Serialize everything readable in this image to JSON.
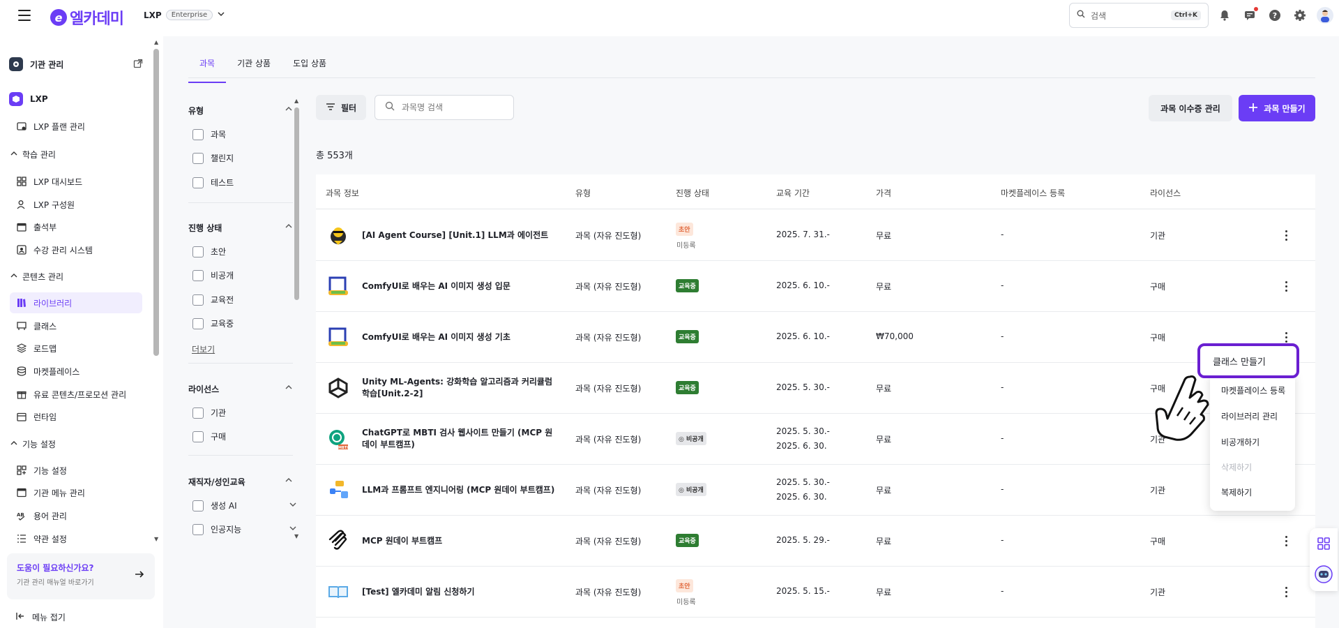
{
  "header": {
    "logo_text": "엘카데미",
    "product": "LXP",
    "edition": "Enterprise",
    "search_placeholder": "검색",
    "search_shortcut": "Ctrl+K"
  },
  "sidebar": {
    "org": "기관 관리",
    "lxp": "LXP",
    "lxp_plan": "LXP 플랜 관리",
    "sections": [
      {
        "label": "학습 관리",
        "items": [
          "LXP 대시보드",
          "LXP 구성원",
          "출석부",
          "수강 관리 시스템"
        ]
      },
      {
        "label": "콘텐츠 관리",
        "items": [
          "라이브러리",
          "클래스",
          "로드맵",
          "마켓플레이스",
          "유료 콘텐츠/프로모션 관리",
          "런타임"
        ]
      },
      {
        "label": "기능 설정",
        "items": [
          "기능 설정",
          "기관 메뉴 관리",
          "용어 관리",
          "약관 설정"
        ]
      }
    ],
    "help_title": "도움이 필요하신가요?",
    "help_sub": "기관 관리 매뉴얼 바로가기",
    "collapse": "메뉴 접기"
  },
  "tabs": [
    "과목",
    "기관 상품",
    "도입 상품"
  ],
  "filters": {
    "type": {
      "title": "유형",
      "options": [
        "과목",
        "챌린지",
        "테스트"
      ]
    },
    "status": {
      "title": "진행 상태",
      "options": [
        "초안",
        "비공개",
        "교육전",
        "교육중"
      ],
      "more": "더보기"
    },
    "license": {
      "title": "라이선스",
      "options": [
        "기관",
        "구매"
      ]
    },
    "category": {
      "title": "재직자/성인교육",
      "options": [
        "생성 AI",
        "인공지능"
      ]
    }
  },
  "toolbar": {
    "filter_label": "필터",
    "search_placeholder": "과목명 검색",
    "cert_label": "과목 이수증 관리",
    "create_label": "과목 만들기",
    "total": "총 553개"
  },
  "table": {
    "headers": [
      "과목 정보",
      "유형",
      "진행 상태",
      "교육 기간",
      "가격",
      "마켓플레이스 등록",
      "라이선스"
    ],
    "rows": [
      {
        "title": "[AI Agent Course] [Unit.1] LLM과 에이전트",
        "type": "과목 (자유 진도형)",
        "status": "초안",
        "status_sub": "미등록",
        "period": "2025. 7. 31.-",
        "period2": "",
        "price": "무료",
        "market": "-",
        "license": "기관"
      },
      {
        "title": "ComfyUI로 배우는 AI 이미지 생성 입문",
        "type": "과목 (자유 진도형)",
        "status": "교육중",
        "status_sub": "",
        "period": "2025. 6. 10.-",
        "period2": "",
        "price": "무료",
        "market": "-",
        "license": "구매"
      },
      {
        "title": "ComfyUI로 배우는 AI 이미지 생성 기초",
        "type": "과목 (자유 진도형)",
        "status": "교육중",
        "status_sub": "",
        "period": "2025. 6. 10.-",
        "period2": "",
        "price": "₩70,000",
        "market": "-",
        "license": "구매"
      },
      {
        "title": "Unity ML-Agents: 강화학습 알고리즘과 커리큘럼 학습[Unit.2-2]",
        "type": "과목 (자유 진도형)",
        "status": "교육중",
        "status_sub": "",
        "period": "2025. 5. 30.-",
        "period2": "",
        "price": "무료",
        "market": "-",
        "license": "구매"
      },
      {
        "title": "ChatGPT로 MBTI 검사 웹사이트 만들기 (MCP 원데이 부트캠프)",
        "type": "과목 (자유 진도형)",
        "status": "비공개",
        "status_sub": "",
        "period": "2025. 5. 30.-",
        "period2": "2025. 6. 30.",
        "price": "무료",
        "market": "-",
        "license": "기관"
      },
      {
        "title": "LLM과 프롬프트 엔지니어링 (MCP 원데이 부트캠프)",
        "type": "과목 (자유 진도형)",
        "status": "비공개",
        "status_sub": "",
        "period": "2025. 5. 30.-",
        "period2": "2025. 6. 30.",
        "price": "무료",
        "market": "-",
        "license": "기관"
      },
      {
        "title": "MCP 원데이 부트캠프",
        "type": "과목 (자유 진도형)",
        "status": "교육중",
        "status_sub": "",
        "period": "2025. 5. 29.-",
        "period2": "",
        "price": "무료",
        "market": "-",
        "license": "구매"
      },
      {
        "title": "[Test] 엘카데미 알림 신청하기",
        "type": "과목 (자유 진도형)",
        "status": "초안",
        "status_sub": "미등록",
        "period": "2025. 5. 15.-",
        "period2": "",
        "price": "무료",
        "market": "-",
        "license": "기관"
      }
    ]
  },
  "context_menu": {
    "highlight": "클래스 만들기",
    "items": [
      "마켓플레이스 등록",
      "라이브러리 관리",
      "비공개하기",
      "삭제하기",
      "복제하기"
    ]
  },
  "colors": {
    "accent": "#6b3df5",
    "live": "#2e7d32",
    "draft": "#e0663a"
  }
}
